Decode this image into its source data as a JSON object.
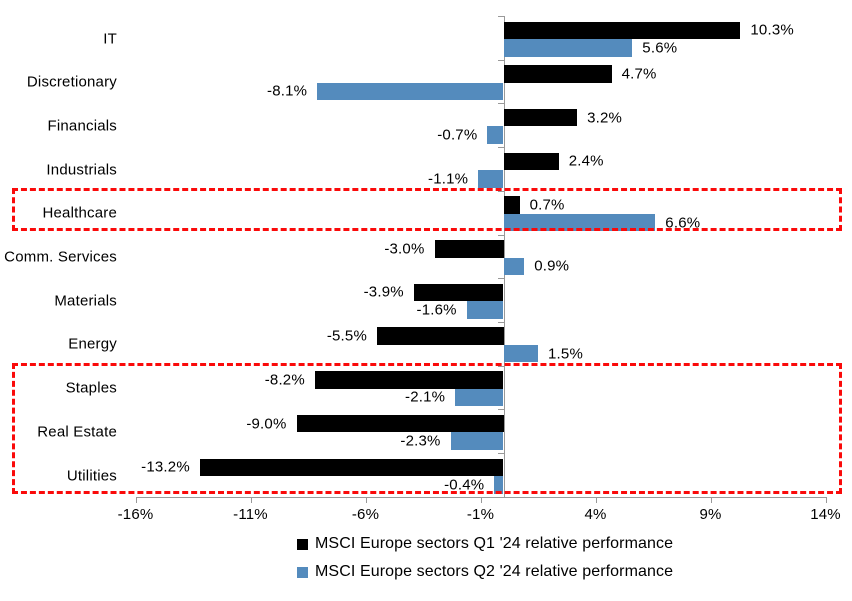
{
  "chart_data": {
    "type": "bar",
    "orientation": "horizontal",
    "title": "",
    "categories": [
      "IT",
      "Discretionary",
      "Financials",
      "Industrials",
      "Healthcare",
      "Comm. Services",
      "Materials",
      "Energy",
      "Staples",
      "Real Estate",
      "Utilities"
    ],
    "series": [
      {
        "name": "MSCI Europe sectors Q1 '24 relative performance",
        "color": "#000000",
        "values": [
          10.3,
          4.7,
          3.2,
          2.4,
          0.7,
          -3.0,
          -3.9,
          -5.5,
          -8.2,
          -9.0,
          -13.2
        ],
        "labels": [
          "10.3%",
          "4.7%",
          "3.2%",
          "2.4%",
          "0.7%",
          "-3.0%",
          "-3.9%",
          "-5.5%",
          "-8.2%",
          "-9.0%",
          "-13.2%"
        ]
      },
      {
        "name": "MSCI Europe sectors Q2 '24 relative performance",
        "color": "#548bbd",
        "values": [
          5.6,
          -8.1,
          -0.7,
          -1.1,
          6.6,
          0.9,
          -1.6,
          1.5,
          -2.1,
          -2.3,
          -0.4
        ],
        "labels": [
          "5.6%",
          "-8.1%",
          "-0.7%",
          "-1.1%",
          "6.6%",
          "0.9%",
          "-1.6%",
          "1.5%",
          "-2.1%",
          "-2.3%",
          "-0.4%"
        ]
      }
    ],
    "x_axis": {
      "tick_labels": [
        "-16%",
        "-11%",
        "-6%",
        "-1%",
        "4%",
        "9%",
        "14%"
      ],
      "tick_values": [
        -16,
        -11,
        -6,
        -1,
        4,
        9,
        14
      ],
      "min": -16,
      "max": 14
    },
    "grid": false,
    "legend_position": "bottom",
    "value_labels": "outside-end",
    "highlights": [
      {
        "style": "red-dashed-box",
        "categories": [
          "Healthcare"
        ]
      },
      {
        "style": "red-dashed-box",
        "categories": [
          "Staples",
          "Real Estate",
          "Utilities"
        ]
      }
    ],
    "colors": {
      "q1_bar": "#000000",
      "q2_bar": "#548bbd",
      "axis": "#999999",
      "highlight_border": "#fa0a0a",
      "text": "#000000",
      "background": "#ffffff"
    }
  }
}
